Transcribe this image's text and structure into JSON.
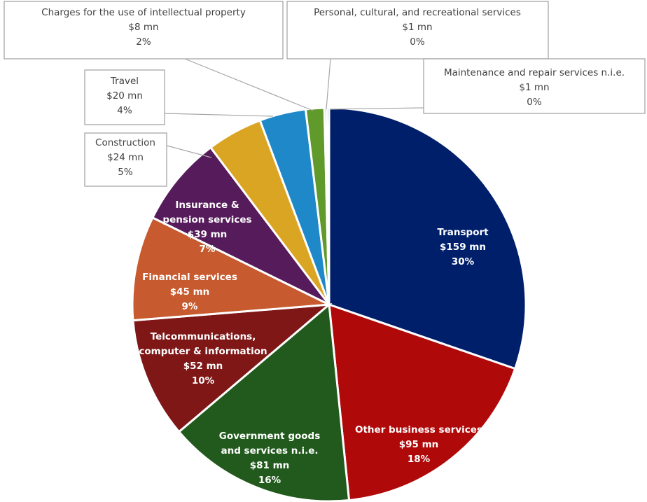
{
  "chart_data": {
    "type": "pie",
    "title": "",
    "unit": "$ mn",
    "slices": [
      {
        "name": "Transport",
        "value": 159,
        "value_label": "$159 mn",
        "percent_label": "30%",
        "color": "#001f6b",
        "label_style": "inside"
      },
      {
        "name": "Other business services",
        "value": 95,
        "value_label": "$95 mn",
        "percent_label": "18%",
        "color": "#b0090a",
        "label_style": "inside"
      },
      {
        "name": "Government goods and services n.i.e.",
        "value": 81,
        "value_label": "$81 mn",
        "percent_label": "16%",
        "color": "#215a1c",
        "label_style": "inside"
      },
      {
        "name": "Telcommunications, computer & information",
        "value": 52,
        "value_label": "$52 mn",
        "percent_label": "10%",
        "color": "#7e1716",
        "label_style": "inside"
      },
      {
        "name": "Financial services",
        "value": 45,
        "value_label": "$45 mn",
        "percent_label": "9%",
        "color": "#c75a2e",
        "label_style": "inside"
      },
      {
        "name": "Insurance & pension services",
        "value": 39,
        "value_label": "$39 mn",
        "percent_label": "7%",
        "color": "#561b5a",
        "label_style": "inside"
      },
      {
        "name": "Construction",
        "value": 24,
        "value_label": "$24 mn",
        "percent_label": "5%",
        "color": "#dba524",
        "label_style": "callout"
      },
      {
        "name": "Travel",
        "value": 20,
        "value_label": "$20 mn",
        "percent_label": "4%",
        "color": "#1f88c9",
        "label_style": "callout"
      },
      {
        "name": "Charges for the use of intellectual property",
        "value": 8,
        "value_label": "$8 mn",
        "percent_label": "2%",
        "color": "#5f9a2b",
        "label_style": "callout"
      },
      {
        "name": "Personal, cultural, and recreational services",
        "value": 1,
        "value_label": "$1 mn",
        "percent_label": "0%",
        "color": "#1c1c1c",
        "label_style": "callout"
      },
      {
        "name": "Maintenance and repair services n.i.e.",
        "value": 1,
        "value_label": "$1 mn",
        "percent_label": "0%",
        "color": "#3a6fa8",
        "label_style": "callout"
      }
    ],
    "start_angle": "12 o'clock",
    "direction": "clockwise",
    "legend": "none"
  }
}
